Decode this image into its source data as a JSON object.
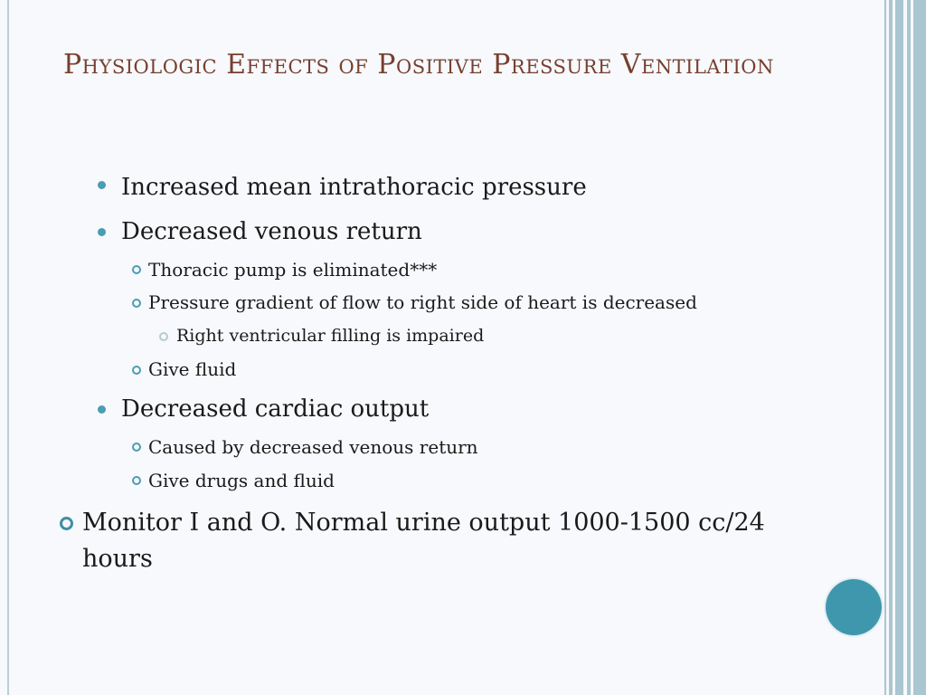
{
  "slide": {
    "title": "Physiologic Effects of Positive Pressure Ventilation",
    "items": [
      {
        "level": 1,
        "text": "Increased mean intrathoracic pressure"
      },
      {
        "level": 1,
        "text": "Decreased venous return"
      },
      {
        "level": 2,
        "text": "Thoracic pump is eliminated***"
      },
      {
        "level": 2,
        "text": "Pressure gradient of flow to right side of heart is decreased"
      },
      {
        "level": 3,
        "text": "Right ventricular filling is impaired"
      },
      {
        "level": 2,
        "text": "Give fluid"
      },
      {
        "level": 1,
        "text": "Decreased cardiac output"
      },
      {
        "level": 2,
        "text": "Caused by decreased venous return"
      },
      {
        "level": 2,
        "text": "Give drugs and fluid"
      },
      {
        "level": 0,
        "text": "Monitor I and O.  Normal urine output 1000-1500 cc/24 hours"
      }
    ]
  },
  "theme": {
    "title_color": "#773f2f",
    "accent_color": "#4a9db3",
    "stripe_color": "#a9c6d1",
    "background": "#f7f9fc"
  }
}
